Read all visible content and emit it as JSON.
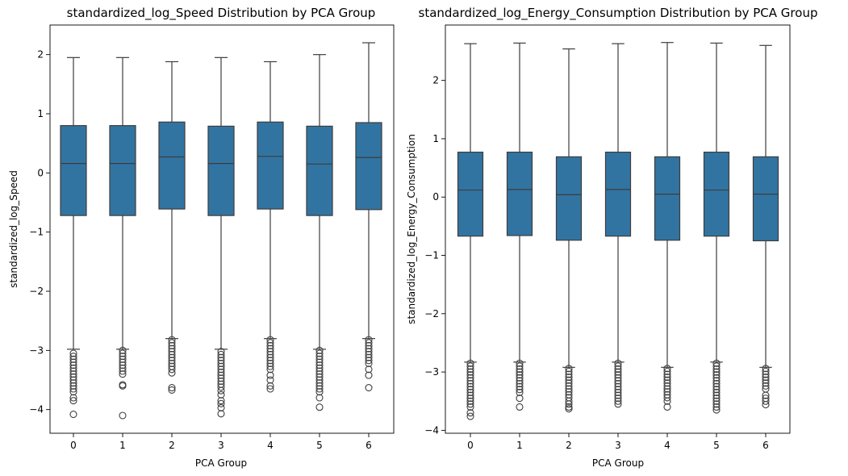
{
  "colors": {
    "box_fill": "#3274a1",
    "line": "#3d3d3d",
    "frame": "#000000",
    "background": "#ffffff"
  },
  "chart_data": [
    {
      "type": "box",
      "title": "standardized_log_Speed Distribution by PCA Group",
      "xlabel": "PCA Group",
      "ylabel": "standardized_log_Speed",
      "ylim": [
        -4.4,
        2.5
      ],
      "yticks": [
        -4,
        -3,
        -2,
        -1,
        0,
        1,
        2
      ],
      "categories": [
        "0",
        "1",
        "2",
        "3",
        "4",
        "5",
        "6"
      ],
      "boxes": [
        {
          "whislo": -2.98,
          "q1": -0.72,
          "median": 0.16,
          "q3": 0.8,
          "whishi": 1.95,
          "fliers": [
            -3.05,
            -3.1,
            -3.15,
            -3.2,
            -3.25,
            -3.3,
            -3.35,
            -3.4,
            -3.45,
            -3.5,
            -3.55,
            -3.6,
            -3.65,
            -3.7,
            -3.8,
            -3.85,
            -4.08
          ]
        },
        {
          "whislo": -2.98,
          "q1": -0.72,
          "median": 0.16,
          "q3": 0.8,
          "whishi": 1.95,
          "fliers": [
            -3.0,
            -3.05,
            -3.1,
            -3.15,
            -3.2,
            -3.25,
            -3.3,
            -3.35,
            -3.4,
            -3.58,
            -3.6,
            -4.1
          ]
        },
        {
          "whislo": -2.8,
          "q1": -0.61,
          "median": 0.27,
          "q3": 0.86,
          "whishi": 1.88,
          "fliers": [
            -2.82,
            -2.87,
            -2.92,
            -2.97,
            -3.02,
            -3.07,
            -3.12,
            -3.17,
            -3.22,
            -3.27,
            -3.32,
            -3.38,
            -3.63,
            -3.67
          ]
        },
        {
          "whislo": -2.98,
          "q1": -0.72,
          "median": 0.16,
          "q3": 0.79,
          "whishi": 1.95,
          "fliers": [
            -3.02,
            -3.07,
            -3.12,
            -3.17,
            -3.22,
            -3.27,
            -3.32,
            -3.37,
            -3.42,
            -3.47,
            -3.52,
            -3.57,
            -3.62,
            -3.68,
            -3.75,
            -3.85,
            -3.9,
            -3.97,
            -4.07
          ]
        },
        {
          "whislo": -2.8,
          "q1": -0.61,
          "median": 0.28,
          "q3": 0.86,
          "whishi": 1.88,
          "fliers": [
            -2.82,
            -2.87,
            -2.92,
            -2.97,
            -3.02,
            -3.07,
            -3.12,
            -3.17,
            -3.22,
            -3.27,
            -3.32,
            -3.42,
            -3.5,
            -3.6,
            -3.65
          ]
        },
        {
          "whislo": -2.98,
          "q1": -0.72,
          "median": 0.15,
          "q3": 0.79,
          "whishi": 2.0,
          "fliers": [
            -3.0,
            -3.05,
            -3.1,
            -3.15,
            -3.2,
            -3.25,
            -3.3,
            -3.35,
            -3.4,
            -3.45,
            -3.5,
            -3.55,
            -3.6,
            -3.65,
            -3.7,
            -3.8,
            -3.96
          ]
        },
        {
          "whislo": -2.8,
          "q1": -0.62,
          "median": 0.26,
          "q3": 0.85,
          "whishi": 2.2,
          "fliers": [
            -2.82,
            -2.87,
            -2.92,
            -2.97,
            -3.02,
            -3.07,
            -3.12,
            -3.17,
            -3.22,
            -3.32,
            -3.42,
            -3.63
          ]
        }
      ]
    },
    {
      "type": "box",
      "title": "standardized_log_Energy_Consumption Distribution by PCA Group",
      "xlabel": "PCA Group",
      "ylabel": "standardized_log_Energy_Consumption",
      "ylim": [
        -4.05,
        2.95
      ],
      "yticks": [
        -4,
        -3,
        -2,
        -1,
        0,
        1,
        2
      ],
      "categories": [
        "0",
        "1",
        "2",
        "3",
        "4",
        "5",
        "6"
      ],
      "boxes": [
        {
          "whislo": -2.83,
          "q1": -0.67,
          "median": 0.12,
          "q3": 0.77,
          "whishi": 2.63,
          "fliers": [
            -2.85,
            -2.9,
            -2.95,
            -3.0,
            -3.05,
            -3.1,
            -3.15,
            -3.2,
            -3.25,
            -3.3,
            -3.35,
            -3.4,
            -3.45,
            -3.5,
            -3.55,
            -3.6,
            -3.7,
            -3.76
          ]
        },
        {
          "whislo": -2.83,
          "q1": -0.66,
          "median": 0.13,
          "q3": 0.77,
          "whishi": 2.64,
          "fliers": [
            -2.85,
            -2.9,
            -2.95,
            -3.0,
            -3.05,
            -3.1,
            -3.15,
            -3.2,
            -3.25,
            -3.3,
            -3.35,
            -3.45,
            -3.6
          ]
        },
        {
          "whislo": -2.92,
          "q1": -0.74,
          "median": 0.04,
          "q3": 0.69,
          "whishi": 2.54,
          "fliers": [
            -2.94,
            -2.99,
            -3.04,
            -3.09,
            -3.14,
            -3.19,
            -3.24,
            -3.29,
            -3.34,
            -3.39,
            -3.44,
            -3.5,
            -3.55,
            -3.6,
            -3.63
          ]
        },
        {
          "whislo": -2.83,
          "q1": -0.67,
          "median": 0.13,
          "q3": 0.77,
          "whishi": 2.63,
          "fliers": [
            -2.85,
            -2.9,
            -2.95,
            -3.0,
            -3.05,
            -3.1,
            -3.15,
            -3.2,
            -3.25,
            -3.3,
            -3.35,
            -3.4,
            -3.45,
            -3.5,
            -3.55
          ]
        },
        {
          "whislo": -2.92,
          "q1": -0.74,
          "median": 0.05,
          "q3": 0.69,
          "whishi": 2.65,
          "fliers": [
            -2.94,
            -2.99,
            -3.04,
            -3.09,
            -3.14,
            -3.19,
            -3.24,
            -3.29,
            -3.34,
            -3.39,
            -3.44,
            -3.5,
            -3.6
          ]
        },
        {
          "whislo": -2.83,
          "q1": -0.67,
          "median": 0.12,
          "q3": 0.77,
          "whishi": 2.64,
          "fliers": [
            -2.85,
            -2.9,
            -2.95,
            -3.0,
            -3.05,
            -3.1,
            -3.15,
            -3.2,
            -3.25,
            -3.3,
            -3.35,
            -3.4,
            -3.45,
            -3.5,
            -3.55,
            -3.6,
            -3.65
          ]
        },
        {
          "whislo": -2.92,
          "q1": -0.75,
          "median": 0.05,
          "q3": 0.69,
          "whishi": 2.6,
          "fliers": [
            -2.94,
            -2.99,
            -3.04,
            -3.09,
            -3.14,
            -3.19,
            -3.24,
            -3.29,
            -3.4,
            -3.45,
            -3.5,
            -3.56
          ]
        }
      ]
    }
  ]
}
